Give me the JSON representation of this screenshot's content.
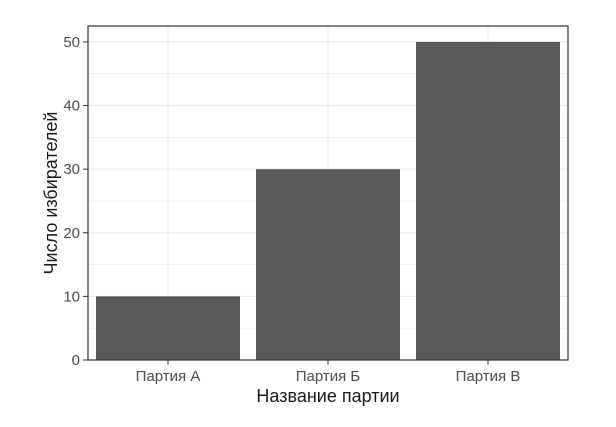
{
  "chart_data": {
    "type": "bar",
    "title": "",
    "xlabel": "Название партии",
    "ylabel": "Число избирателей",
    "categories": [
      "Партия А",
      "Партия Б",
      "Партия В"
    ],
    "values": [
      10,
      30,
      50
    ],
    "ylim": [
      0,
      52.5
    ],
    "yticks": [
      0,
      10,
      20,
      30,
      40,
      50
    ],
    "grid": true,
    "bar_color": "#595959",
    "panel_border_color": "#333333",
    "grid_color": "#ebebeb"
  }
}
